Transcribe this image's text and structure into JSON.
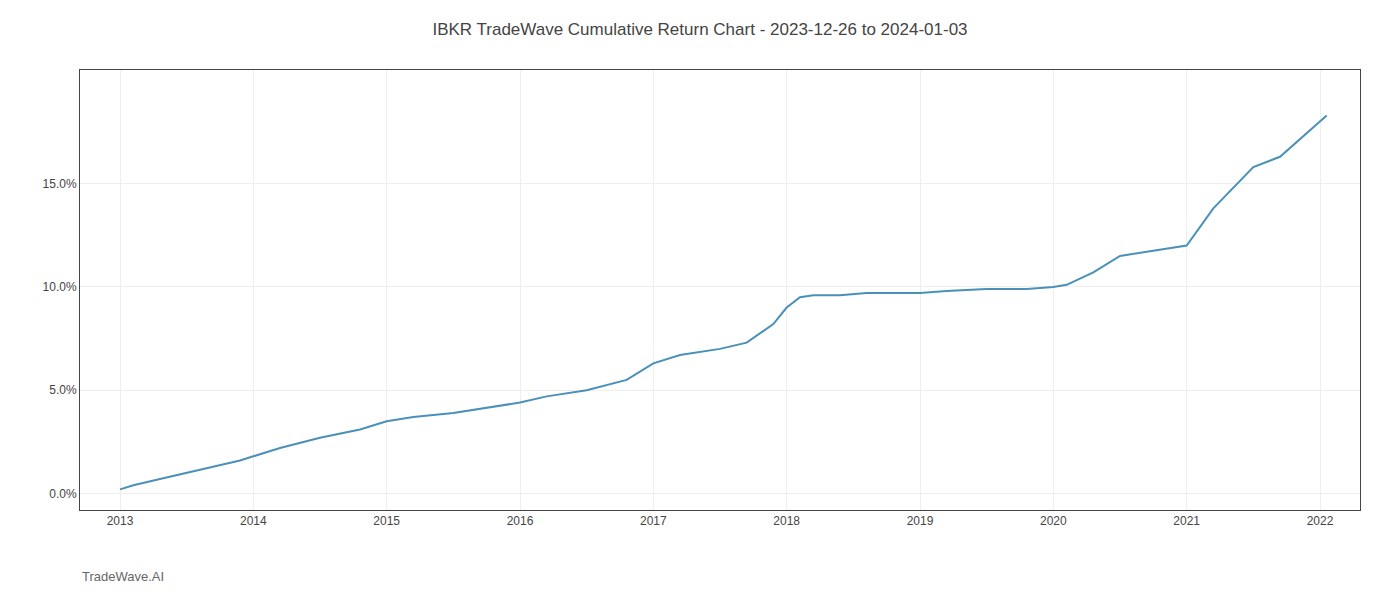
{
  "chart_data": {
    "type": "line",
    "title": "IBKR TradeWave Cumulative Return Chart - 2023-12-26 to 2024-01-03",
    "annotations": [
      {
        "text": "TradeWave.AI"
      }
    ],
    "x": [
      2013.0,
      2013.1,
      2013.3,
      2013.5,
      2013.7,
      2013.9,
      2014.0,
      2014.2,
      2014.5,
      2014.8,
      2015.0,
      2015.2,
      2015.5,
      2015.8,
      2016.0,
      2016.2,
      2016.5,
      2016.8,
      2017.0,
      2017.2,
      2017.5,
      2017.7,
      2017.9,
      2018.0,
      2018.1,
      2018.2,
      2018.4,
      2018.6,
      2018.8,
      2019.0,
      2019.2,
      2019.5,
      2019.8,
      2020.0,
      2020.1,
      2020.3,
      2020.5,
      2020.7,
      2021.0,
      2021.2,
      2021.5,
      2021.7,
      2022.0,
      2022.05
    ],
    "values": [
      0.002,
      0.004,
      0.007,
      0.01,
      0.013,
      0.016,
      0.018,
      0.022,
      0.027,
      0.031,
      0.035,
      0.037,
      0.039,
      0.042,
      0.044,
      0.047,
      0.05,
      0.055,
      0.063,
      0.067,
      0.07,
      0.073,
      0.082,
      0.09,
      0.095,
      0.096,
      0.096,
      0.097,
      0.097,
      0.097,
      0.098,
      0.099,
      0.099,
      0.1,
      0.101,
      0.107,
      0.115,
      0.117,
      0.12,
      0.138,
      0.158,
      0.163,
      0.18,
      0.183
    ],
    "color": "#4a90b8",
    "xlim": [
      2012.7,
      2022.3
    ],
    "ylim": [
      -0.008,
      0.205
    ],
    "xticks": [
      2013,
      2014,
      2015,
      2016,
      2017,
      2018,
      2019,
      2020,
      2021,
      2022
    ],
    "yticks": [
      {
        "value": 0.0,
        "label": "0.0%"
      },
      {
        "value": 0.05,
        "label": "5.0%"
      },
      {
        "value": 0.1,
        "label": "10.0%"
      },
      {
        "value": 0.15,
        "label": "15.0%"
      }
    ],
    "grid": true
  }
}
